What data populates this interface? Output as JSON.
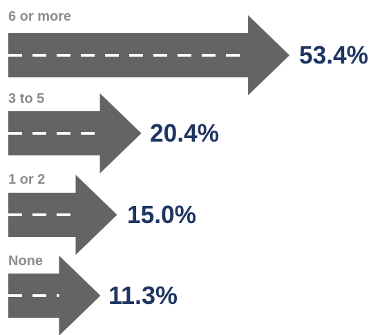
{
  "chart_data": {
    "type": "bar",
    "orientation": "horizontal",
    "style": "road-arrow",
    "categories": [
      "6 or more",
      "3 to 5",
      "1 or 2",
      "None"
    ],
    "values": [
      53.4,
      20.4,
      15.0,
      11.3
    ],
    "value_labels": [
      "53.4%",
      "20.4%",
      "15.0%",
      "11.3%"
    ],
    "title": "",
    "xlabel": "",
    "ylabel": "",
    "grid": false,
    "legend": "none"
  },
  "colors": {
    "arrow": "#646464",
    "lane_dash": "#ffffff",
    "category_text": "#8c8c8c",
    "value_text": "#1f3563"
  }
}
